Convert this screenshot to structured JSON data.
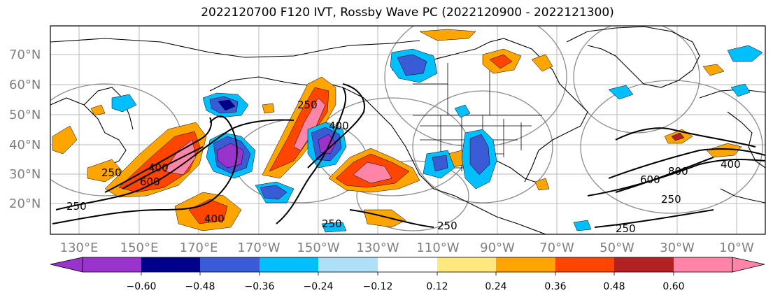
{
  "title": "2022120700 F120 IVT, Rossby Wave PC (2022120900 - 2022121300)",
  "map": {
    "lat_labels": [
      "70°N",
      "60°N",
      "50°N",
      "40°N",
      "30°N",
      "20°N"
    ],
    "lon_labels": [
      "130°E",
      "150°E",
      "170°E",
      "170°W",
      "150°W",
      "130°W",
      "110°W",
      "90°W",
      "70°W",
      "50°W",
      "30°W",
      "10°W"
    ],
    "contour_labels": [
      "250",
      "600",
      "400",
      "250",
      "400",
      "250",
      "400",
      "250",
      "250",
      "600",
      "800",
      "250",
      "400",
      "250"
    ]
  },
  "colorbar": {
    "colors": [
      "#9933cc",
      "#00008b",
      "#3a5bd6",
      "#00bfff",
      "#aee0f8",
      "#ffffff",
      "#ffe97f",
      "#ffa500",
      "#ff4500",
      "#b22222",
      "#ff85a8"
    ],
    "extend_low_color": "#9933cc",
    "extend_high_color": "#ff85a8",
    "tick_labels": [
      "−0.60",
      "−0.48",
      "−0.36",
      "−0.24",
      "−0.12",
      "0.12",
      "0.24",
      "0.36",
      "0.48",
      "0.60"
    ]
  }
}
